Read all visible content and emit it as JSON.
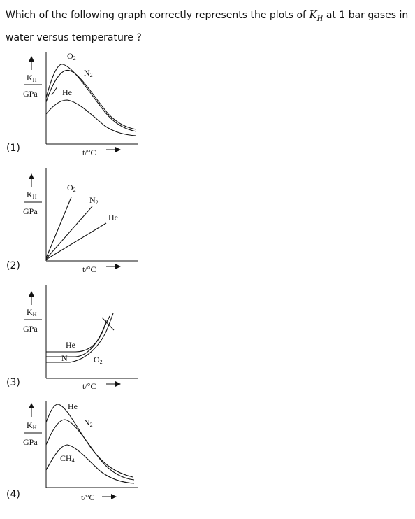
{
  "question": {
    "before": "Which of the following graph correctly represents the plots of ",
    "kh_symbol": "K",
    "kh_sub": "H",
    "after": " at 1 bar gases in water versus temperature ?"
  },
  "axis": {
    "y_numerator": "K",
    "y_numerator_sub": "H",
    "y_denominator": "GPa",
    "x_label": "t/°C"
  },
  "options": [
    {
      "label": "(1)",
      "curves": [
        {
          "name": "O",
          "sub": "2"
        },
        {
          "name": "N",
          "sub": "2"
        },
        {
          "name": "He",
          "sub": ""
        }
      ]
    },
    {
      "label": "(2)",
      "curves": [
        {
          "name": "O",
          "sub": "2"
        },
        {
          "name": "N",
          "sub": "2"
        },
        {
          "name": "He",
          "sub": ""
        }
      ]
    },
    {
      "label": "(3)",
      "curves": [
        {
          "name": "He",
          "sub": ""
        },
        {
          "name": "N",
          "sub": ""
        },
        {
          "name": "O",
          "sub": "2"
        }
      ]
    },
    {
      "label": "(4)",
      "curves": [
        {
          "name": "He",
          "sub": ""
        },
        {
          "name": "N",
          "sub": "2"
        },
        {
          "name": "CH",
          "sub": "4"
        }
      ]
    }
  ]
}
